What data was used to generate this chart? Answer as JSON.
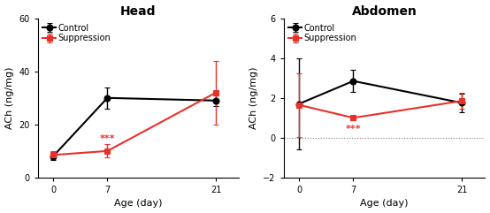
{
  "head": {
    "title": "Head",
    "xlabel": "Age (day)",
    "ylabel": "ACh (ng/mg)",
    "xticks": [
      0,
      7,
      21
    ],
    "ylim": [
      0,
      60
    ],
    "yticks": [
      0,
      20,
      40,
      60
    ],
    "control_mean": [
      8,
      30,
      29
    ],
    "control_err": [
      1.5,
      4,
      2
    ],
    "suppression_mean": [
      8.5,
      10,
      32
    ],
    "suppression_err": [
      1.5,
      2.5,
      12
    ],
    "sig_x": 7,
    "sig_y": 13,
    "sig_text": "***",
    "has_dotted_line": false
  },
  "abdomen": {
    "title": "Abdomen",
    "xlabel": "Age (day)",
    "ylabel": "ACh (ng/mg)",
    "xticks": [
      0,
      7,
      21
    ],
    "ylim": [
      -2,
      6
    ],
    "yticks": [
      -2,
      0,
      2,
      4,
      6
    ],
    "control_mean": [
      1.7,
      2.85,
      1.75
    ],
    "control_err": [
      2.3,
      0.55,
      0.45
    ],
    "suppression_mean": [
      1.65,
      1.0,
      1.85
    ],
    "suppression_err": [
      1.6,
      0.1,
      0.4
    ],
    "sig_x": 7,
    "sig_y": 0.2,
    "sig_text": "***",
    "has_dotted_line": true,
    "dotted_y": 0
  },
  "control_color": "#000000",
  "suppression_color": "#e8312a",
  "marker_size": 5,
  "linewidth": 1.5,
  "capsize": 2.5,
  "elinewidth": 1.0,
  "legend_fontsize": 7,
  "tick_fontsize": 7,
  "label_fontsize": 8,
  "title_fontsize": 10
}
